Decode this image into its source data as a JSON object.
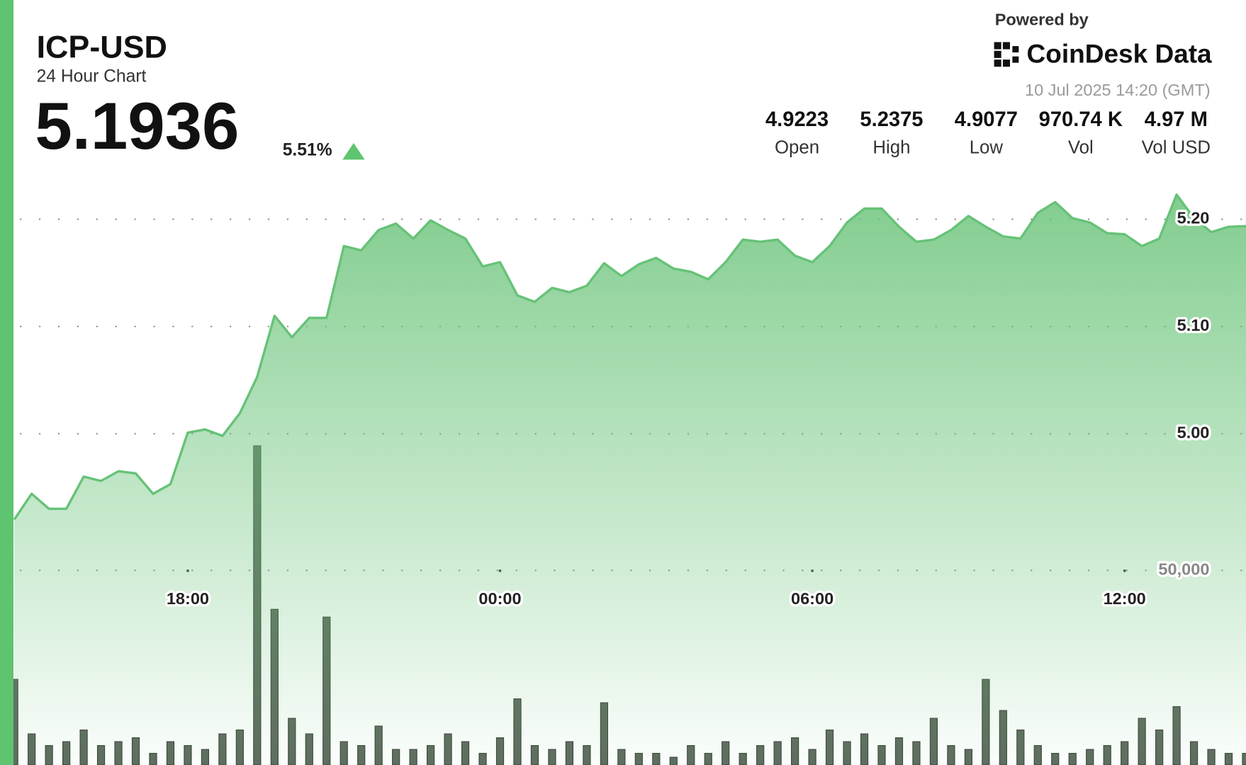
{
  "chart_data": {
    "type": "area",
    "title": "ICP-USD",
    "subtitle": "24 Hour Chart",
    "last_price": "5.1936",
    "change": "5.51%",
    "powered_by": "Powered by",
    "brand": "CoinDesk Data",
    "timestamp": "10 Jul 2025 14:20 (GMT)",
    "stats": [
      {
        "value": "4.9223",
        "label": "Open"
      },
      {
        "value": "5.2375",
        "label": "High"
      },
      {
        "value": "4.9077",
        "label": "Low"
      },
      {
        "value": "970.74 K",
        "label": "Vol"
      },
      {
        "value": "4.97 M",
        "label": "Vol USD"
      }
    ],
    "x": [
      "2025-07-09T14:40",
      "2025-07-09T15:00",
      "2025-07-09T15:20",
      "2025-07-09T15:40",
      "2025-07-09T16:00",
      "2025-07-09T16:20",
      "2025-07-09T16:40",
      "2025-07-09T17:00",
      "2025-07-09T17:20",
      "2025-07-09T17:40",
      "2025-07-09T18:00",
      "2025-07-09T18:20",
      "2025-07-09T18:40",
      "2025-07-09T19:00",
      "2025-07-09T19:20",
      "2025-07-09T19:40",
      "2025-07-09T20:00",
      "2025-07-09T20:20",
      "2025-07-09T20:40",
      "2025-07-09T21:00",
      "2025-07-09T21:20",
      "2025-07-09T21:40",
      "2025-07-09T22:00",
      "2025-07-09T22:20",
      "2025-07-09T22:40",
      "2025-07-09T23:00",
      "2025-07-09T23:20",
      "2025-07-09T23:40",
      "2025-07-10T00:00",
      "2025-07-10T00:20",
      "2025-07-10T00:40",
      "2025-07-10T01:00",
      "2025-07-10T01:20",
      "2025-07-10T01:40",
      "2025-07-10T02:00",
      "2025-07-10T02:20",
      "2025-07-10T02:40",
      "2025-07-10T03:00",
      "2025-07-10T03:20",
      "2025-07-10T03:40",
      "2025-07-10T04:00",
      "2025-07-10T04:20",
      "2025-07-10T04:40",
      "2025-07-10T05:00",
      "2025-07-10T05:20",
      "2025-07-10T05:40",
      "2025-07-10T06:00",
      "2025-07-10T06:20",
      "2025-07-10T06:40",
      "2025-07-10T07:00",
      "2025-07-10T07:20",
      "2025-07-10T07:40",
      "2025-07-10T08:00",
      "2025-07-10T08:20",
      "2025-07-10T08:40",
      "2025-07-10T09:00",
      "2025-07-10T09:20",
      "2025-07-10T09:40",
      "2025-07-10T10:00",
      "2025-07-10T10:20",
      "2025-07-10T10:40",
      "2025-07-10T11:00",
      "2025-07-10T11:20",
      "2025-07-10T11:40",
      "2025-07-10T12:00",
      "2025-07-10T12:20",
      "2025-07-10T12:40",
      "2025-07-10T13:00",
      "2025-07-10T13:20",
      "2025-07-10T13:40",
      "2025-07-10T14:00",
      "2025-07-10T14:20"
    ],
    "xlim": [
      "2025-07-09T14:40",
      "2025-07-10T14:20"
    ],
    "xticks": [
      {
        "value": "2025-07-09T18:00",
        "label": "18:00"
      },
      {
        "value": "2025-07-10T00:00",
        "label": "00:00"
      },
      {
        "value": "2025-07-10T06:00",
        "label": "06:00"
      },
      {
        "value": "2025-07-10T12:00",
        "label": "12:00"
      }
    ],
    "ylim": [
      4.8,
      5.3
    ],
    "yticks": [
      {
        "value": 5.0,
        "label": "5.00"
      },
      {
        "value": 5.1,
        "label": "5.10"
      },
      {
        "value": 5.2,
        "label": "5.20"
      }
    ],
    "y2lim": [
      0,
      100000
    ],
    "y2ticks": [
      {
        "value": 50000,
        "label": "50,000"
      }
    ],
    "grid": true,
    "series": [
      {
        "name": "Price",
        "type": "area",
        "color": "#66c277",
        "values": [
          4.92,
          4.944,
          4.93,
          4.93,
          4.96,
          4.956,
          4.965,
          4.963,
          4.944,
          4.953,
          5.001,
          5.004,
          4.998,
          5.019,
          5.053,
          5.11,
          5.09,
          5.108,
          5.108,
          5.175,
          5.171,
          5.19,
          5.196,
          5.182,
          5.199,
          5.19,
          5.182,
          5.156,
          5.16,
          5.129,
          5.123,
          5.136,
          5.132,
          5.138,
          5.159,
          5.147,
          5.158,
          5.164,
          5.154,
          5.151,
          5.144,
          5.16,
          5.181,
          5.179,
          5.181,
          5.166,
          5.16,
          5.175,
          5.197,
          5.21,
          5.21,
          5.193,
          5.179,
          5.181,
          5.19,
          5.203,
          5.193,
          5.184,
          5.182,
          5.206,
          5.216,
          5.201,
          5.197,
          5.187,
          5.186,
          5.175,
          5.182,
          5.223,
          5.201,
          5.188,
          5.193,
          5.1936
        ]
      },
      {
        "name": "Volume",
        "type": "bar",
        "axis": "y2",
        "color": "#5e6b5e",
        "values": [
          22000,
          8000,
          5000,
          6000,
          9000,
          5000,
          6000,
          7000,
          3000,
          6000,
          5000,
          4000,
          8000,
          9000,
          82000,
          40000,
          12000,
          8000,
          38000,
          6000,
          5000,
          10000,
          4000,
          4000,
          5000,
          8000,
          6000,
          3000,
          7000,
          17000,
          5000,
          4000,
          6000,
          5000,
          16000,
          4000,
          3000,
          3000,
          2000,
          5000,
          3000,
          6000,
          3000,
          5000,
          6000,
          7000,
          4000,
          9000,
          6000,
          8000,
          5000,
          7000,
          6000,
          12000,
          5000,
          4000,
          22000,
          14000,
          9000,
          5000,
          3000,
          3000,
          4000,
          5000,
          6000,
          12000,
          9000,
          15000,
          6000,
          4000,
          3000,
          3000
        ]
      }
    ]
  }
}
